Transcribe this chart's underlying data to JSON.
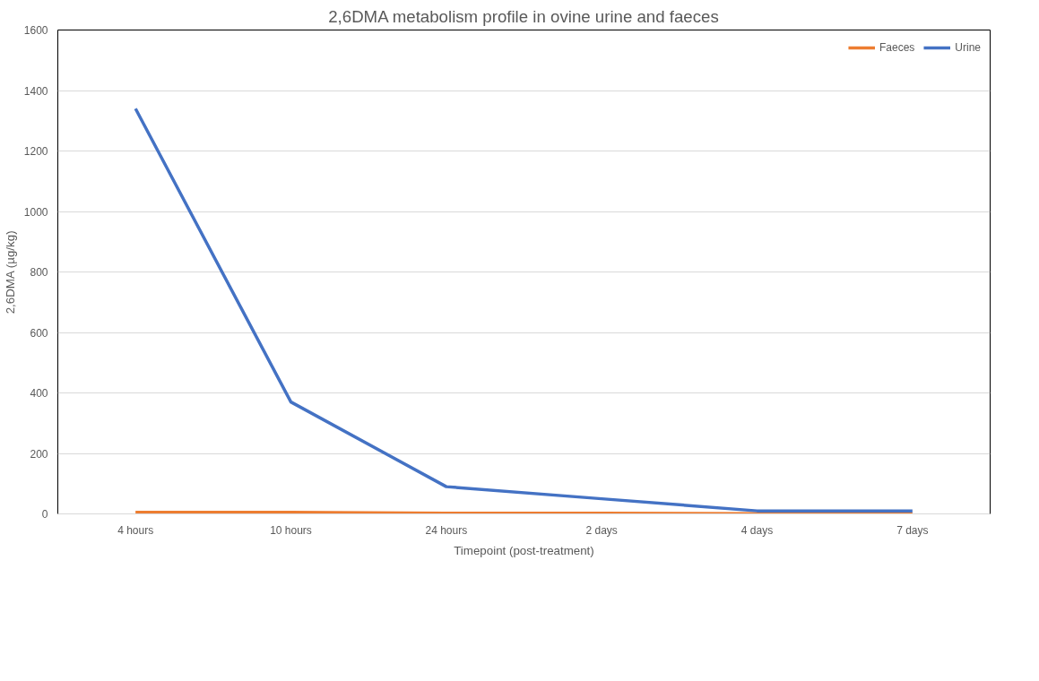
{
  "chart_data": {
    "type": "line",
    "title": "2,6DMA metabolism profile in ovine urine and faeces",
    "xlabel": "Timepoint (post-treatment)",
    "ylabel": "2,6DMA (µg/kg)",
    "categories": [
      "4 hours",
      "10 hours",
      "24 hours",
      "2 days",
      "4 days",
      "7 days"
    ],
    "series": [
      {
        "name": "Faeces",
        "color": "#ed7d31",
        "values": [
          5,
          5,
          2,
          2,
          1,
          1
        ]
      },
      {
        "name": "Urine",
        "color": "#4472c4",
        "values": [
          1340,
          370,
          90,
          50,
          10,
          10
        ]
      }
    ],
    "ylim": [
      0,
      1600
    ],
    "yticks": [
      0,
      200,
      400,
      600,
      800,
      1000,
      1200,
      1400,
      1600
    ],
    "grid": "y",
    "legend": "top right",
    "marker": "none",
    "line_style": "solid"
  }
}
